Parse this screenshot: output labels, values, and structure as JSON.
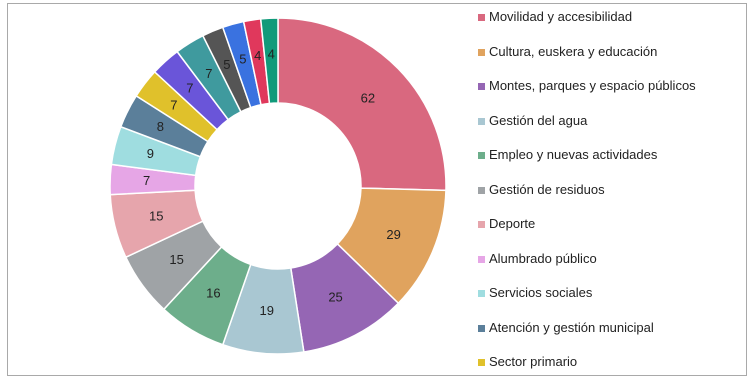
{
  "chart_data": {
    "type": "donut",
    "title": "",
    "legend_position": "right",
    "categories": [
      "Movilidad y accesibilidad",
      "Cultura, euskera y educación",
      "Montes, parques y espacio públicos",
      "Gestión del agua",
      "Empleo y nuevas actividades",
      "Gestión de residuos",
      "Deporte",
      "Alumbrado público",
      "Servicios sociales",
      "Atención y gestión municipal",
      "Sector primario",
      "",
      "",
      "",
      "",
      "",
      ""
    ],
    "values": [
      62,
      29,
      25,
      19,
      16,
      15,
      15,
      7,
      9,
      8,
      7,
      7,
      7,
      5,
      5,
      4,
      4
    ],
    "colors": [
      "#d9687f",
      "#e0a35e",
      "#9566b4",
      "#a9c7d2",
      "#6dae8b",
      "#9fa3a6",
      "#e6a5ac",
      "#e6a6e6",
      "#9fdde0",
      "#5b7f9a",
      "#e0c12b",
      "#6a55d9",
      "#3f9a9e",
      "#555555",
      "#3a72e0",
      "#e0385c",
      "#119a7a",
      "#8fb83a"
    ],
    "legend": [
      {
        "label": "Movilidad y accesibilidad",
        "color": "#d9687f"
      },
      {
        "label": "Cultura, euskera y educación",
        "color": "#e0a35e"
      },
      {
        "label": "Montes, parques y espacio públicos",
        "color": "#9566b4"
      },
      {
        "label": "Gestión del agua",
        "color": "#a9c7d2"
      },
      {
        "label": "Empleo y nuevas actividades",
        "color": "#6dae8b"
      },
      {
        "label": "Gestión de residuos",
        "color": "#9fa3a6"
      },
      {
        "label": "Deporte",
        "color": "#e6a5ac"
      },
      {
        "label": "Alumbrado público",
        "color": "#e6a6e6"
      },
      {
        "label": "Servicios sociales",
        "color": "#9fdde0"
      },
      {
        "label": "Atención y gestión municipal",
        "color": "#5b7f9a"
      },
      {
        "label": "Sector primario",
        "color": "#e0c12b"
      }
    ],
    "slice_labels_shown": [
      true,
      true,
      true,
      true,
      true,
      true,
      true,
      true,
      true,
      true,
      true,
      true,
      true,
      true,
      true,
      true,
      true
    ]
  }
}
